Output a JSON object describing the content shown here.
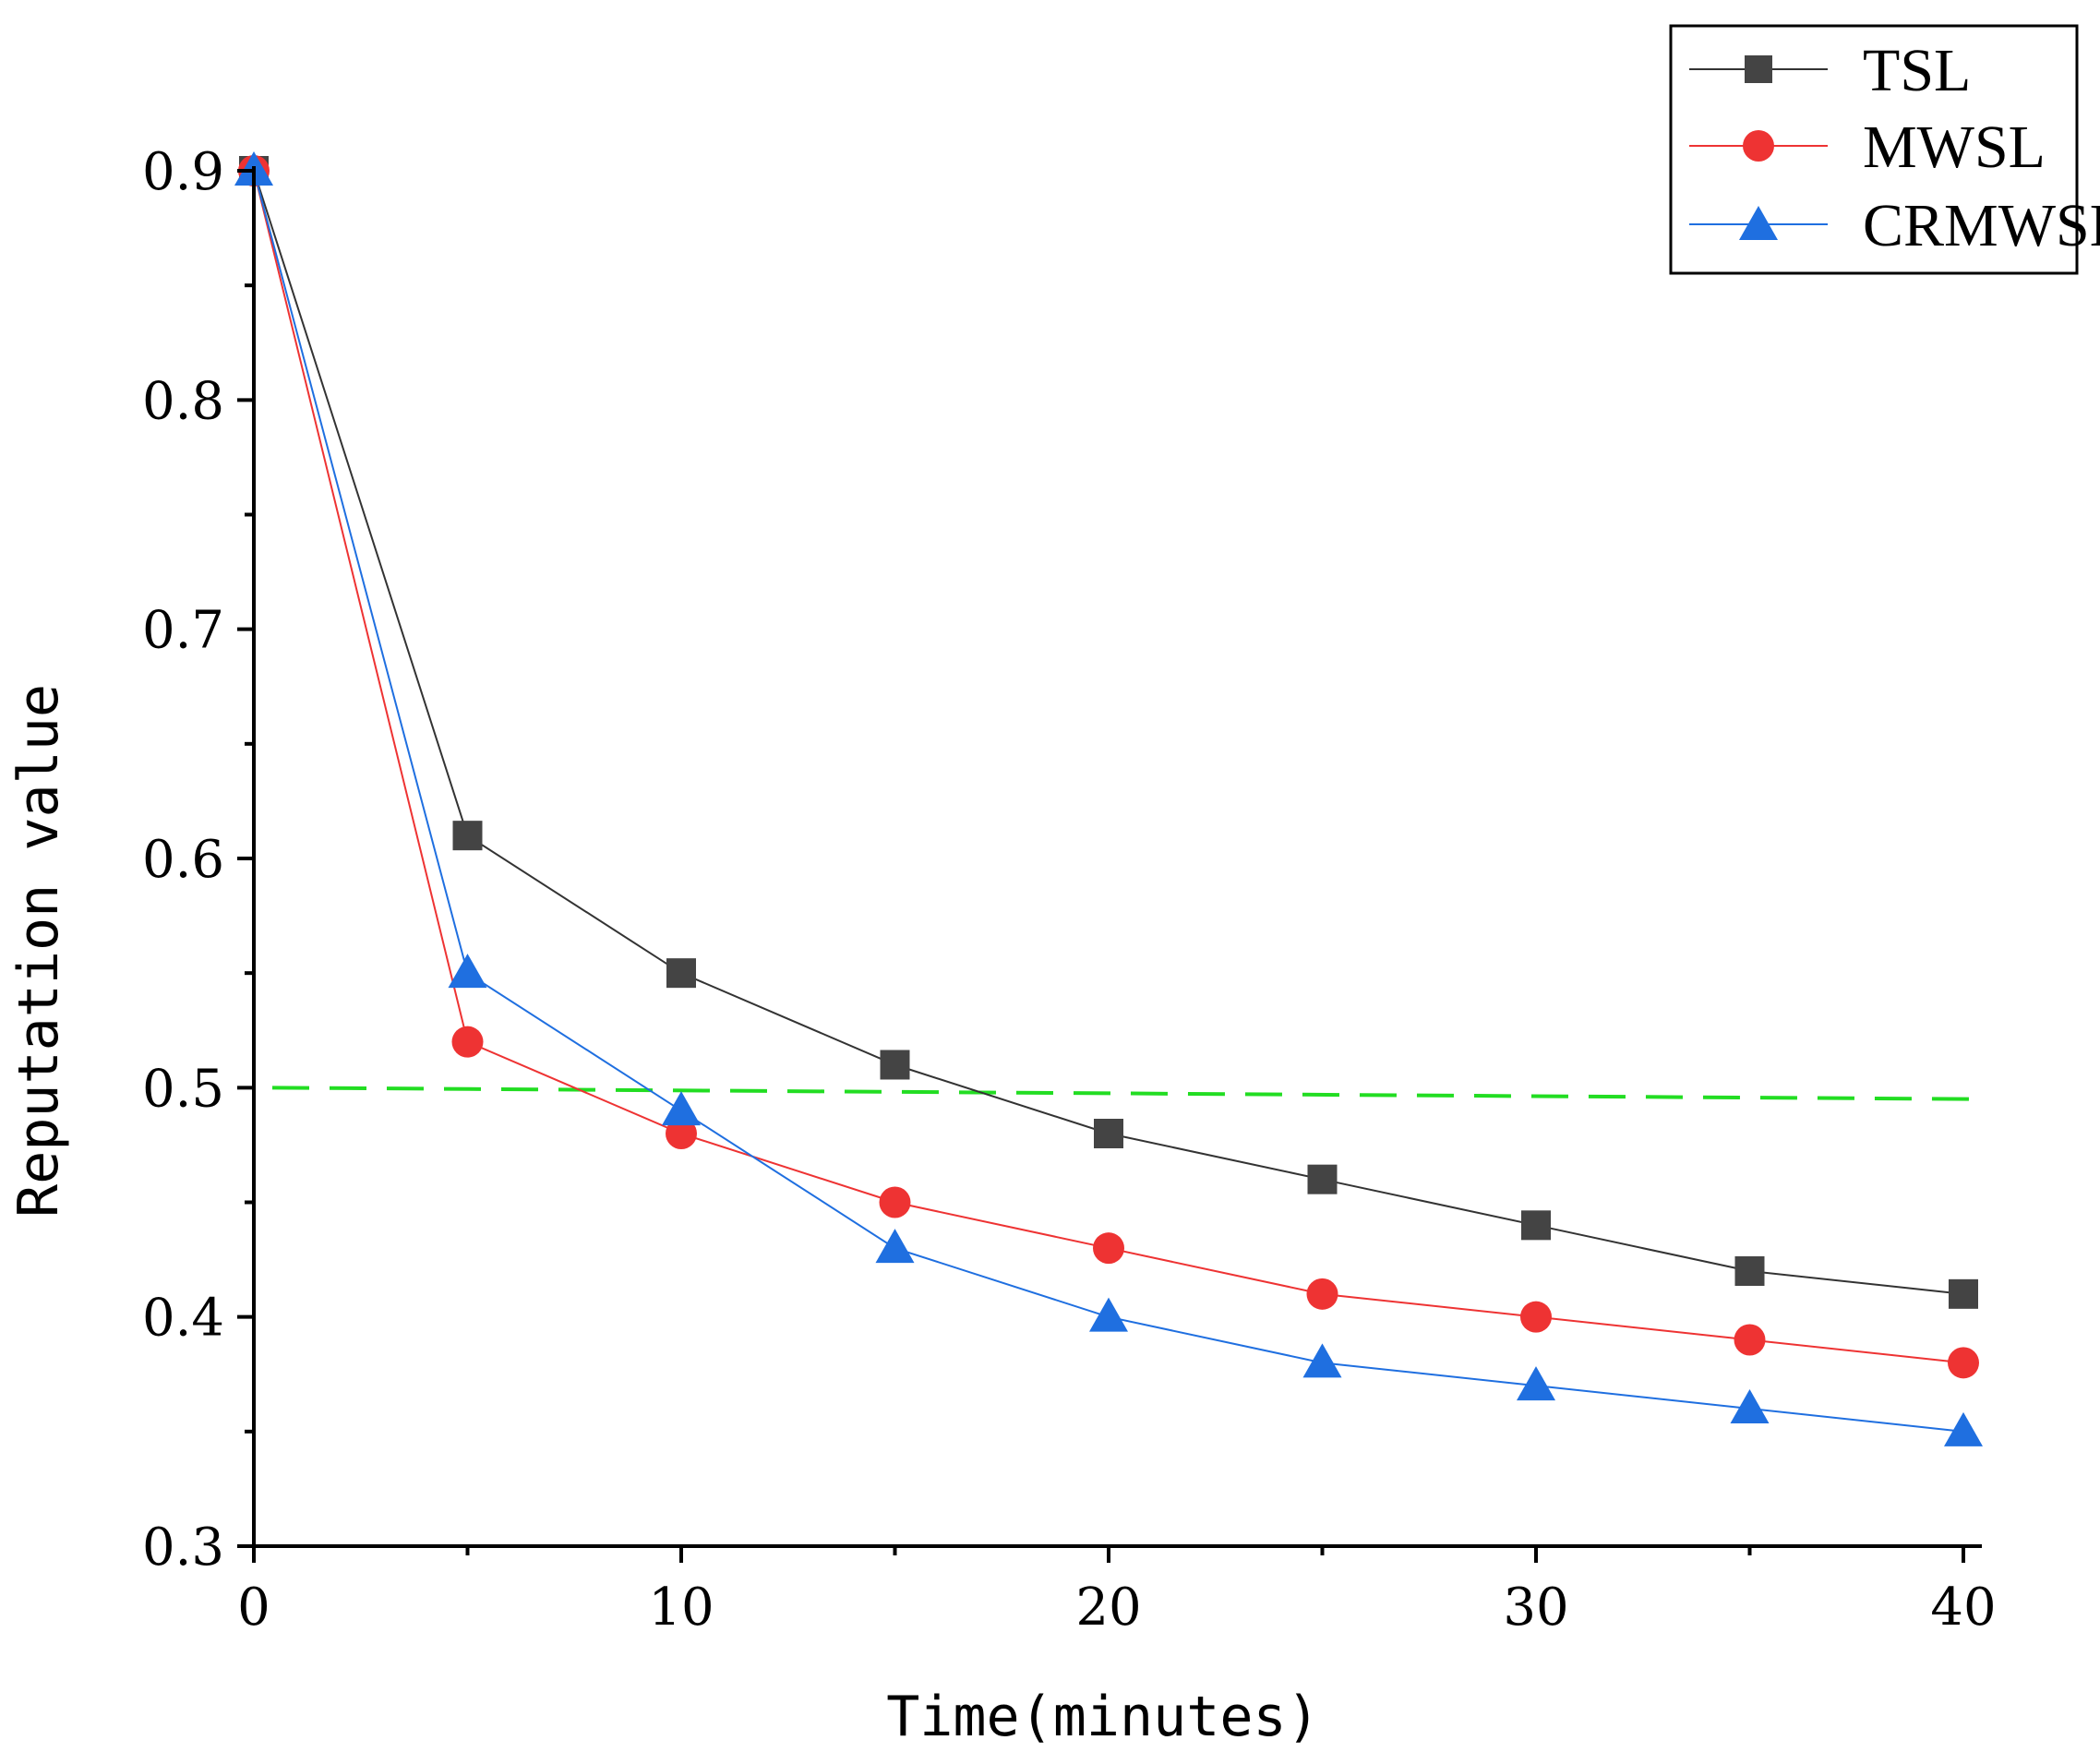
{
  "chart_data": {
    "type": "line",
    "title": "",
    "xlabel": "Time(minutes)",
    "ylabel": "Reputation value",
    "xlim": [
      0,
      40
    ],
    "ylim": [
      0.3,
      0.9
    ],
    "x_ticks": [
      0,
      10,
      20,
      30,
      40
    ],
    "x_tick_labels": [
      "0",
      "10",
      "20",
      "30",
      "40"
    ],
    "y_ticks": [
      0.3,
      0.4,
      0.5,
      0.6,
      0.7,
      0.8,
      0.9
    ],
    "y_tick_labels": [
      "0.3",
      "0.4",
      "0.5",
      "0.6",
      "0.7",
      "0.8",
      "0.9"
    ],
    "legend_position": "top-right",
    "grid": false,
    "x": [
      0,
      5,
      10,
      15,
      20,
      25,
      30,
      35,
      40
    ],
    "series": [
      {
        "name": "TSL",
        "color": "#333333",
        "marker": "square",
        "values": [
          0.9,
          0.61,
          0.55,
          0.51,
          0.48,
          0.46,
          0.44,
          0.42,
          0.41
        ]
      },
      {
        "name": "MWSL",
        "color": "#ee3333",
        "marker": "circle",
        "values": [
          0.9,
          0.52,
          0.48,
          0.45,
          0.43,
          0.41,
          0.4,
          0.39,
          0.38
        ]
      },
      {
        "name": "CRMWSL",
        "color": "#1f6fe0",
        "marker": "triangle",
        "values": [
          0.9,
          0.55,
          0.49,
          0.43,
          0.4,
          0.38,
          0.37,
          0.36,
          0.35
        ]
      }
    ],
    "reference_line": {
      "color": "#22dd22",
      "style": "dashed",
      "x": [
        0,
        40
      ],
      "values": [
        0.5,
        0.495
      ]
    }
  }
}
